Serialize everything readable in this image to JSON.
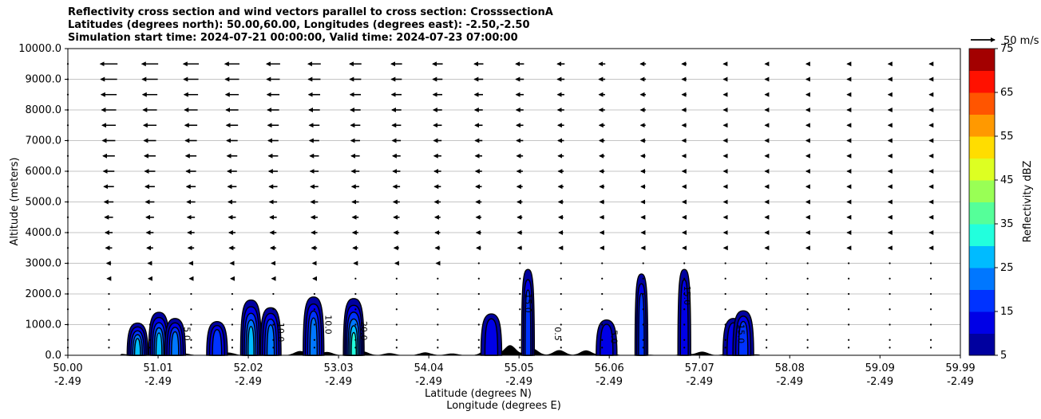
{
  "title": {
    "line1": "Reflectivity cross section and wind vectors parallel to cross section: CrosssectionA",
    "line2": "Latitudes (degrees north): 50.00,60.00, Longitudes (degrees east): -2.50,-2.50",
    "line3": "Simulation start time: 2024-07-21 00:00:00, Valid time: 2024-07-23 07:00:00"
  },
  "chart_data": {
    "type": "cross-section",
    "x_axis": {
      "label_line1": "Latitude (degrees N)",
      "label_line2": "Longitude (degrees E)",
      "range": [
        50.0,
        59.99
      ],
      "ticks": [
        {
          "lat": "50.00",
          "lon": "-2.49",
          "value": 50.0
        },
        {
          "lat": "51.01",
          "lon": "-2.49",
          "value": 51.01
        },
        {
          "lat": "52.02",
          "lon": "-2.49",
          "value": 52.02
        },
        {
          "lat": "53.03",
          "lon": "-2.49",
          "value": 53.03
        },
        {
          "lat": "54.04",
          "lon": "-2.49",
          "value": 54.04
        },
        {
          "lat": "55.05",
          "lon": "-2.49",
          "value": 55.05
        },
        {
          "lat": "56.06",
          "lon": "-2.49",
          "value": 56.06
        },
        {
          "lat": "57.07",
          "lon": "-2.49",
          "value": 57.07
        },
        {
          "lat": "58.08",
          "lon": "-2.49",
          "value": 58.08
        },
        {
          "lat": "59.09",
          "lon": "-2.49",
          "value": 59.09
        },
        {
          "lat": "59.99",
          "lon": "-2.49",
          "value": 59.99
        }
      ]
    },
    "y_axis": {
      "label": "Altitude (meters)",
      "range": [
        0,
        10000
      ],
      "ticks": [
        "0.0",
        "1000.0",
        "2000.0",
        "3000.0",
        "4000.0",
        "5000.0",
        "6000.0",
        "7000.0",
        "8000.0",
        "9000.0",
        "10000.0"
      ],
      "gridlines": true
    },
    "colorbar": {
      "label": "Reflectivity dBZ",
      "levels": [
        5,
        10,
        15,
        20,
        25,
        30,
        35,
        40,
        45,
        50,
        55,
        60,
        65,
        70,
        75
      ],
      "tick_labels": [
        "5",
        "15",
        "25",
        "35",
        "45",
        "55",
        "65",
        "75"
      ],
      "colors": [
        "#00009f",
        "#0000e6",
        "#0033ff",
        "#0077ff",
        "#00bbff",
        "#22ffdd",
        "#55ff99",
        "#99ff55",
        "#ddff22",
        "#ffdd00",
        "#ff9900",
        "#ff5500",
        "#ff1100",
        "#a30000"
      ]
    },
    "wind_key": {
      "label": "50 m/s",
      "speed": 50
    },
    "wind_vector_levels_m": [
      250,
      500,
      1000,
      1500,
      2000,
      2500,
      3000,
      3500,
      4000,
      4500,
      5000,
      5500,
      6000,
      6500,
      7000,
      7500,
      8000,
      8500,
      9000,
      9500
    ],
    "wind_vector_columns_lat": [
      50.0,
      50.46,
      50.92,
      51.38,
      51.84,
      52.3,
      52.76,
      53.22,
      53.68,
      54.14,
      54.6,
      55.06,
      55.52,
      55.98,
      56.44,
      56.9,
      57.36,
      57.82,
      58.28,
      58.74,
      59.2,
      59.66
    ],
    "echo_cells": [
      {
        "lat": 50.78,
        "top_m": 1050,
        "max_dbz": 25
      },
      {
        "lat": 51.02,
        "top_m": 1400,
        "max_dbz": 25
      },
      {
        "lat": 51.2,
        "top_m": 1200,
        "max_dbz": 20
      },
      {
        "lat": 51.67,
        "top_m": 1100,
        "max_dbz": 15
      },
      {
        "lat": 52.05,
        "top_m": 1800,
        "max_dbz": 25
      },
      {
        "lat": 52.27,
        "top_m": 1550,
        "max_dbz": 20
      },
      {
        "lat": 52.75,
        "top_m": 1900,
        "max_dbz": 20
      },
      {
        "lat": 53.2,
        "top_m": 1850,
        "max_dbz": 30
      },
      {
        "lat": 54.74,
        "top_m": 1350,
        "max_dbz": 10
      },
      {
        "lat": 55.15,
        "top_m": 2800,
        "max_dbz": 15
      },
      {
        "lat": 56.03,
        "top_m": 1150,
        "max_dbz": 10
      },
      {
        "lat": 56.42,
        "top_m": 2650,
        "max_dbz": 15
      },
      {
        "lat": 56.9,
        "top_m": 2800,
        "max_dbz": 10
      },
      {
        "lat": 57.45,
        "top_m": 1200,
        "max_dbz": 10
      },
      {
        "lat": 57.56,
        "top_m": 1450,
        "max_dbz": 15
      }
    ],
    "contour_labels": [
      {
        "text": "5.0",
        "lat": 51.3,
        "alt": 700
      },
      {
        "text": "10.0",
        "lat": 52.35,
        "alt": 750
      },
      {
        "text": "10.0",
        "lat": 52.88,
        "alt": 1000
      },
      {
        "text": "20.0",
        "lat": 53.28,
        "alt": 800
      },
      {
        "text": "15.0",
        "lat": 55.12,
        "alt": 1700
      },
      {
        "text": "0.5",
        "lat": 55.45,
        "alt": 700
      },
      {
        "text": "5.0",
        "lat": 56.08,
        "alt": 600
      },
      {
        "text": "15.0",
        "lat": 56.9,
        "alt": 1950
      },
      {
        "text": "15.0",
        "lat": 57.5,
        "alt": 700
      }
    ]
  }
}
